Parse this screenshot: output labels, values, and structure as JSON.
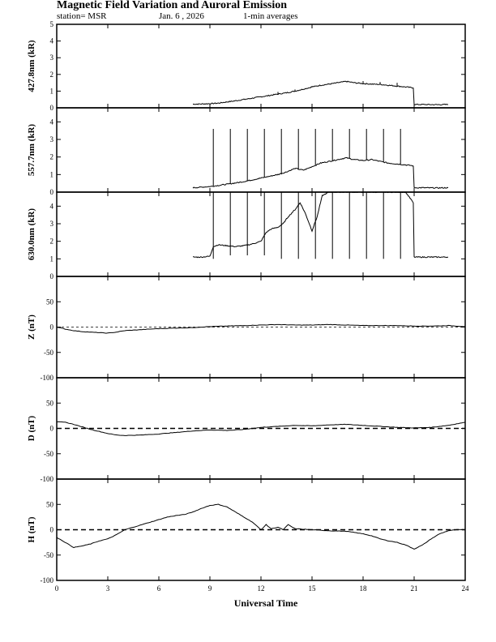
{
  "title": "Magnetic Field Variation and Auroral Emission",
  "subtitle": {
    "station": "station= MSR",
    "date": "Jan. 6 , 2026",
    "averaging": "1-min averages"
  },
  "chart_data": {
    "type": "line",
    "xlabel": "Universal Time",
    "xlim": [
      0,
      24
    ],
    "xticks": [
      0,
      3,
      6,
      9,
      12,
      15,
      18,
      21,
      24
    ],
    "xtick_labels": [
      "0",
      "3",
      "6",
      "9",
      "12",
      "15",
      "18",
      "21",
      "24"
    ],
    "panels": [
      {
        "id": "p4278",
        "ylabel": "427.8nm (kR)",
        "ylim": [
          0,
          5
        ],
        "yticks": [
          0,
          1,
          2,
          3,
          4,
          5
        ],
        "ytick_labels": [
          "0",
          "1",
          "2",
          "3",
          "4",
          "5"
        ],
        "zero_line": "none",
        "series": {
          "x": [
            8,
            8.5,
            9,
            9.5,
            10,
            10.5,
            11,
            11.5,
            12,
            12.5,
            13,
            13.5,
            14,
            14.5,
            15,
            15.5,
            16,
            16.5,
            17,
            17.5,
            18,
            18.5,
            19,
            19.5,
            20,
            20.5,
            20.95
          ],
          "y": [
            0.22,
            0.23,
            0.25,
            0.28,
            0.35,
            0.42,
            0.5,
            0.58,
            0.66,
            0.74,
            0.82,
            0.9,
            1.0,
            1.12,
            1.25,
            1.35,
            1.42,
            1.5,
            1.58,
            1.5,
            1.45,
            1.42,
            1.4,
            1.35,
            1.3,
            1.25,
            1.2
          ],
          "tail_x": [
            21,
            21.5,
            22,
            22.5,
            23
          ],
          "tail_y": [
            0.2,
            0.2,
            0.19,
            0.19,
            0.2
          ],
          "spikes_x": [
            13.0,
            14.0,
            15.0,
            16.0,
            17.0,
            18.0,
            19.0,
            20.0
          ],
          "spikes_top": [
            0.95,
            1.1,
            1.3,
            1.45,
            1.55,
            1.6,
            1.55,
            1.5
          ]
        }
      },
      {
        "id": "p5577",
        "ylabel": "557.7nm (kR)",
        "ylim": [
          0,
          4.8
        ],
        "yticks": [
          0,
          1,
          2,
          3,
          4
        ],
        "ytick_labels": [
          "0",
          "1",
          "2",
          "3",
          "4"
        ],
        "zero_line": "none",
        "series": {
          "x": [
            8,
            8.5,
            9,
            9.5,
            10,
            10.5,
            11,
            11.5,
            12,
            12.5,
            13,
            13.5,
            14,
            14.5,
            15,
            15.5,
            16,
            16.5,
            17,
            17.5,
            18,
            18.5,
            19,
            19.5,
            20,
            20.5,
            20.95
          ],
          "y": [
            0.25,
            0.28,
            0.32,
            0.38,
            0.45,
            0.52,
            0.6,
            0.7,
            0.8,
            0.9,
            1.0,
            1.15,
            1.35,
            1.25,
            1.45,
            1.65,
            1.75,
            1.85,
            1.95,
            1.85,
            1.8,
            1.85,
            1.75,
            1.65,
            1.6,
            1.55,
            1.5
          ],
          "tail_x": [
            21,
            21.5,
            22,
            22.5,
            23
          ],
          "tail_y": [
            0.25,
            0.25,
            0.24,
            0.24,
            0.25
          ],
          "spikes_x": [
            9.2,
            10.2,
            11.2,
            12.2,
            13.2,
            14.2,
            15.2,
            16.2,
            17.2,
            18.2,
            19.2,
            20.2
          ],
          "spikes_top": [
            3.6,
            3.6,
            3.6,
            3.6,
            3.6,
            3.6,
            3.6,
            3.6,
            3.6,
            3.6,
            3.6,
            3.6
          ]
        }
      },
      {
        "id": "p6300",
        "ylabel": "630.0nm (kR)",
        "ylim": [
          0,
          4.8
        ],
        "yticks": [
          0,
          1,
          2,
          3,
          4
        ],
        "ytick_labels": [
          "0",
          "1",
          "2",
          "3",
          "4"
        ],
        "zero_line": "none",
        "series": {
          "x": [
            8,
            8.5,
            9,
            9.2,
            9.5,
            10,
            10.5,
            11,
            11.5,
            12,
            12.3,
            12.6,
            13,
            13.3,
            13.6,
            14,
            14.3,
            14.6,
            15,
            15.3,
            15.6,
            16,
            16.5,
            17,
            17.5,
            18,
            18.5,
            19,
            19.5,
            20,
            20.5,
            20.95
          ],
          "y": [
            1.1,
            1.1,
            1.15,
            1.7,
            1.8,
            1.75,
            1.7,
            1.75,
            1.85,
            2.0,
            2.5,
            2.7,
            2.8,
            3.0,
            3.4,
            3.8,
            4.2,
            3.6,
            2.6,
            3.4,
            4.6,
            4.8,
            4.8,
            4.8,
            4.8,
            4.8,
            4.8,
            4.8,
            4.8,
            4.8,
            4.8,
            4.2
          ],
          "tail_x": [
            21,
            21.5,
            22,
            22.5,
            23
          ],
          "tail_y": [
            1.1,
            1.1,
            1.1,
            1.1,
            1.1
          ],
          "spikes_x": [
            9.2,
            10.2,
            11.2,
            12.2,
            13.2,
            14.2,
            15.2,
            16.2,
            17.2,
            18.2,
            19.2,
            20.2
          ],
          "spikes_top": [
            4.8,
            4.8,
            4.8,
            4.8,
            4.8,
            4.8,
            4.8,
            4.8,
            4.8,
            4.8,
            4.8,
            4.8
          ],
          "spikes_bottom": [
            1.0,
            1.2,
            1.2,
            1.2,
            1.0,
            1.0,
            1.0,
            1.0,
            1.0,
            1.0,
            1.0,
            1.0
          ]
        }
      },
      {
        "id": "pZ",
        "ylabel": "Z (nT)",
        "ylim": [
          -100,
          100
        ],
        "yticks": [
          -100,
          -50,
          0,
          50
        ],
        "ytick_labels": [
          "-100",
          "-50",
          "0",
          "50"
        ],
        "zero_line": "thin",
        "series": {
          "x": [
            0,
            0.5,
            1,
            1.5,
            2,
            2.5,
            3,
            3.5,
            4,
            5,
            6,
            7,
            8,
            9,
            10,
            11,
            12,
            13,
            14,
            15,
            16,
            17,
            18,
            19,
            20,
            21,
            22,
            23,
            24
          ],
          "y": [
            0,
            -4,
            -7,
            -9,
            -10,
            -11,
            -12,
            -10,
            -7,
            -5,
            -3,
            -2,
            -1,
            1,
            2,
            3,
            4,
            5,
            4,
            4,
            5,
            4,
            3,
            3,
            3,
            2,
            2,
            3,
            1
          ]
        }
      },
      {
        "id": "pD",
        "ylabel": "D (nT)",
        "ylim": [
          -100,
          100
        ],
        "yticks": [
          -100,
          -50,
          0,
          50
        ],
        "ytick_labels": [
          "-100",
          "-50",
          "0",
          "50"
        ],
        "zero_line": "thick",
        "series": {
          "x": [
            0,
            0.5,
            1,
            1.5,
            2,
            2.5,
            3,
            3.5,
            4,
            5,
            6,
            7,
            8,
            9,
            10,
            11,
            12,
            13,
            14,
            15,
            16,
            17,
            18,
            19,
            20,
            21,
            22,
            23,
            24
          ],
          "y": [
            13,
            12,
            8,
            3,
            -2,
            -6,
            -10,
            -13,
            -14,
            -13,
            -11,
            -8,
            -5,
            -3,
            -4,
            -2,
            2,
            4,
            6,
            5,
            7,
            8,
            6,
            4,
            2,
            1,
            2,
            6,
            12
          ]
        }
      },
      {
        "id": "pH",
        "ylabel": "H (nT)",
        "ylim": [
          -100,
          100
        ],
        "yticks": [
          -100,
          -50,
          0,
          50
        ],
        "ytick_labels": [
          "-100",
          "-50",
          "0",
          "50"
        ],
        "zero_line": "thick",
        "series": {
          "x": [
            0,
            0.5,
            1,
            1.5,
            2,
            2.5,
            3,
            3.5,
            4,
            4.5,
            5,
            5.5,
            6,
            6.5,
            7,
            7.5,
            8,
            8.5,
            9,
            9.5,
            10,
            10.5,
            11,
            11.5,
            12,
            12.3,
            12.6,
            13,
            13.3,
            13.6,
            14,
            15,
            16,
            17,
            18,
            18.5,
            19,
            19.5,
            20,
            20.5,
            21,
            21.5,
            22,
            22.5,
            23,
            23.5,
            24
          ],
          "y": [
            -15,
            -25,
            -35,
            -32,
            -28,
            -22,
            -18,
            -10,
            0,
            5,
            10,
            15,
            20,
            25,
            28,
            30,
            35,
            42,
            48,
            50,
            45,
            35,
            25,
            15,
            0,
            10,
            2,
            5,
            0,
            10,
            2,
            0,
            -2,
            -3,
            -8,
            -12,
            -18,
            -22,
            -25,
            -30,
            -38,
            -30,
            -18,
            -8,
            -2,
            0,
            0
          ]
        }
      }
    ]
  }
}
